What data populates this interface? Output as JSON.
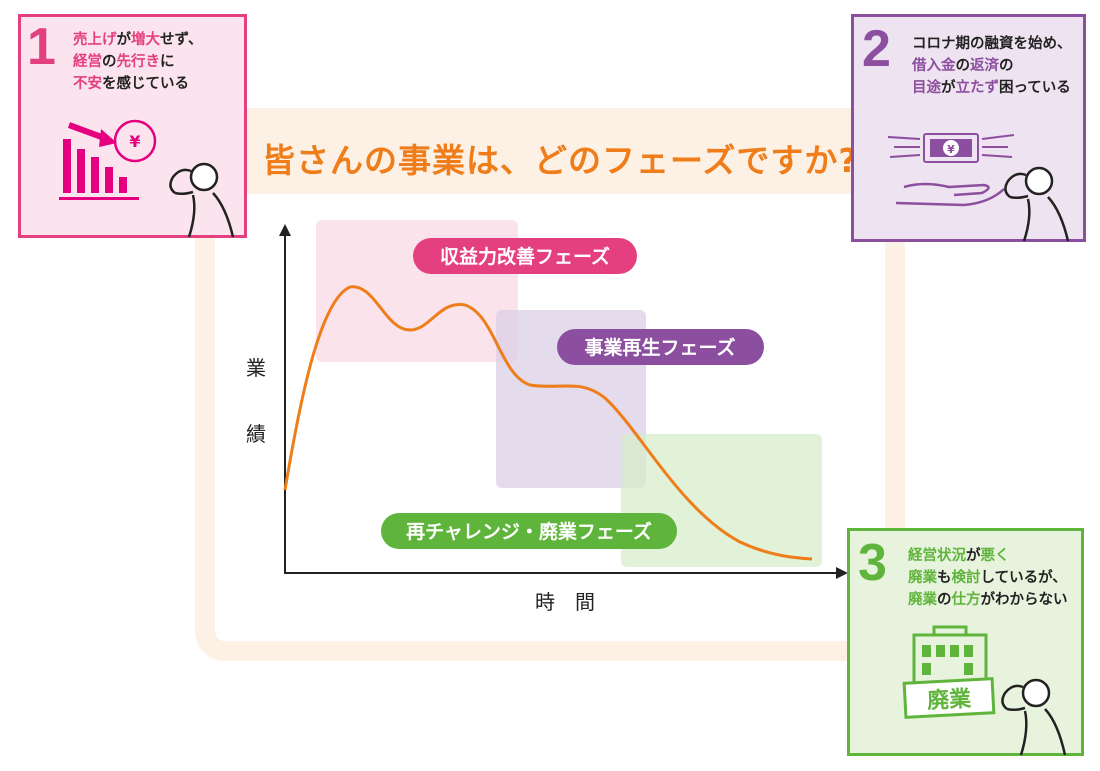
{
  "main_title": "皆さんの事業は、どのフェーズですか?",
  "chart_data": {
    "type": "line",
    "xlabel": "時　間",
    "ylabel": "業績",
    "phases": [
      {
        "label": "収益力改善フェーズ",
        "color": "#e4407f"
      },
      {
        "label": "事業再生フェーズ",
        "color": "#8c4f9f"
      },
      {
        "label": "再チャレンジ・廃業フェーズ",
        "color": "#5fb53c"
      }
    ],
    "line_color": "#ee7d1a"
  },
  "cards": [
    {
      "number": "1",
      "lines": [
        [
          {
            "t": "売上げ",
            "h": true
          },
          {
            "t": "が",
            "h": false
          },
          {
            "t": "増大",
            "h": true
          },
          {
            "t": "せず、",
            "h": false
          }
        ],
        [
          {
            "t": "経営",
            "h": true
          },
          {
            "t": "の",
            "h": false
          },
          {
            "t": "先行き",
            "h": true
          },
          {
            "t": "に",
            "h": false
          }
        ],
        [
          {
            "t": "不安",
            "h": true
          },
          {
            "t": "を感じている",
            "h": false
          }
        ]
      ],
      "color": "#e4407f",
      "icon": "declining-sales-icon",
      "yen_symbol": "¥"
    },
    {
      "number": "2",
      "lines": [
        [
          {
            "t": "コロナ期の融資を始め、",
            "h": false
          }
        ],
        [
          {
            "t": "借入金",
            "h": true
          },
          {
            "t": "の",
            "h": false
          },
          {
            "t": "返済",
            "h": true
          },
          {
            "t": "の",
            "h": false
          }
        ],
        [
          {
            "t": "目途",
            "h": true
          },
          {
            "t": "が",
            "h": false
          },
          {
            "t": "立たず",
            "h": true
          },
          {
            "t": "困っている",
            "h": false
          }
        ]
      ],
      "color": "#8c4f9f",
      "icon": "flying-money-icon",
      "yen_symbol": "¥"
    },
    {
      "number": "3",
      "lines": [
        [
          {
            "t": "経営状況",
            "h": true
          },
          {
            "t": "が",
            "h": false
          },
          {
            "t": "悪く",
            "h": true
          }
        ],
        [
          {
            "t": "廃業",
            "h": true
          },
          {
            "t": "も",
            "h": false
          },
          {
            "t": "検討",
            "h": true
          },
          {
            "t": "しているが、",
            "h": false
          }
        ],
        [
          {
            "t": "廃業",
            "h": true
          },
          {
            "t": "の",
            "h": false
          },
          {
            "t": "仕方",
            "h": true
          },
          {
            "t": "がわからない",
            "h": false
          }
        ]
      ],
      "color": "#5fb53c",
      "icon": "closed-building-icon",
      "sign_text": "廃業"
    }
  ]
}
